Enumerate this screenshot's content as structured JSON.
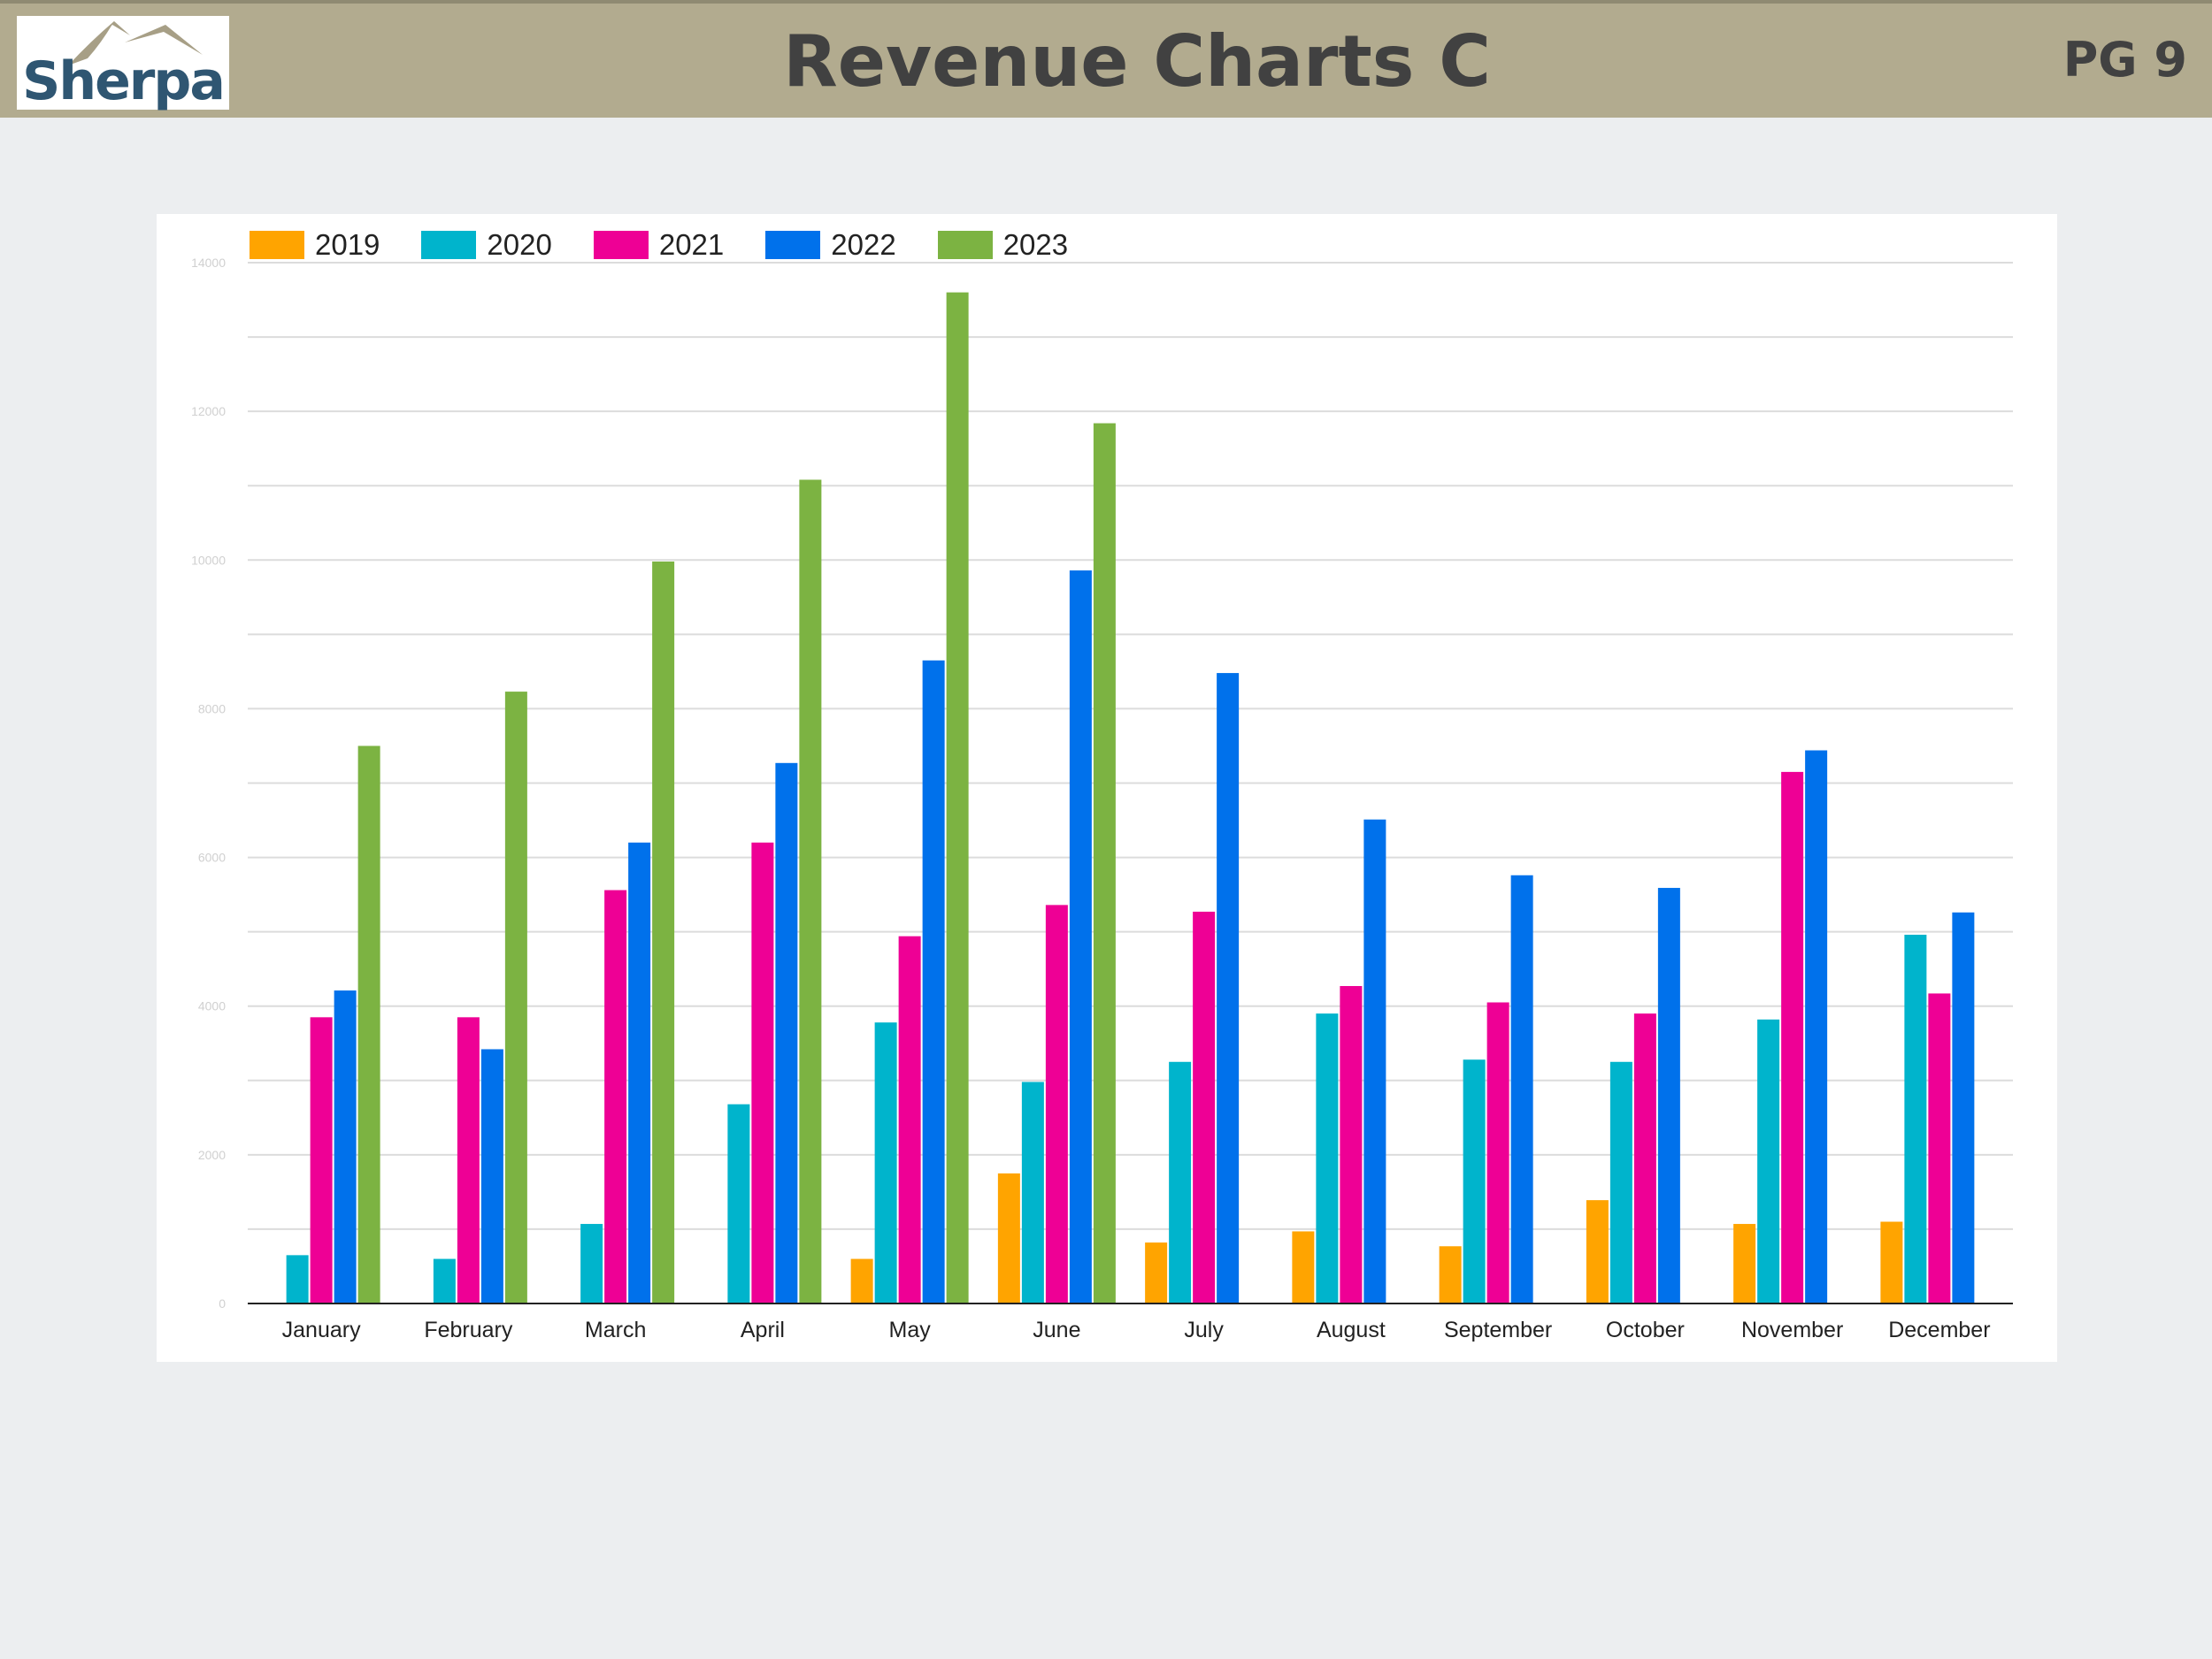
{
  "header": {
    "logo_text": "Sherpa",
    "title": "Revenue Charts C",
    "page_label": "PG 9"
  },
  "colors": {
    "header_bg": "#b2ab8f",
    "logo_text": "#2f5672",
    "logo_mountain": "#a79f86",
    "title_text": "#414141"
  },
  "chart_data": {
    "type": "bar",
    "title": "",
    "xlabel": "",
    "ylabel": "",
    "ylim": [
      0,
      14000
    ],
    "y_ticks": [
      0,
      2000,
      4000,
      6000,
      8000,
      10000,
      12000,
      14000
    ],
    "y_tick_labels": [
      "0",
      "2000",
      "4000",
      "6000",
      "8000",
      "10000",
      "12000",
      "14000"
    ],
    "grid": true,
    "legend_position": "top-left",
    "categories": [
      "January",
      "February",
      "March",
      "April",
      "May",
      "June",
      "July",
      "August",
      "September",
      "October",
      "November",
      "December"
    ],
    "series": [
      {
        "name": "2019",
        "color": "#ffa400",
        "values": [
          null,
          null,
          null,
          null,
          600,
          1750,
          820,
          970,
          770,
          1390,
          1070,
          1100
        ]
      },
      {
        "name": "2020",
        "color": "#00b4cc",
        "values": [
          650,
          600,
          1070,
          2680,
          3780,
          2980,
          3250,
          3900,
          3280,
          3250,
          3820,
          4960
        ]
      },
      {
        "name": "2021",
        "color": "#ee0095",
        "values": [
          3850,
          3850,
          5560,
          6200,
          4940,
          5360,
          5270,
          4270,
          4050,
          3900,
          7150,
          4170
        ]
      },
      {
        "name": "2022",
        "color": "#0071eb",
        "values": [
          4210,
          3420,
          6200,
          7270,
          8650,
          9860,
          8480,
          6510,
          5760,
          5590,
          7440,
          5260
        ]
      },
      {
        "name": "2023",
        "color": "#7cb342",
        "values": [
          7500,
          8230,
          9980,
          11080,
          13600,
          11840,
          null,
          null,
          null,
          null,
          null,
          null
        ]
      }
    ]
  }
}
